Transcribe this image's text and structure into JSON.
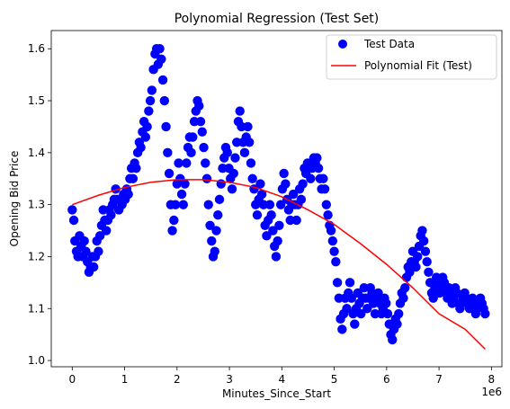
{
  "chart_data": {
    "type": "scatter",
    "title": "Polynomial Regression (Test Set)",
    "xlabel": "Minutes_Since_Start",
    "ylabel": "Opening Bid Price",
    "x_offset_label": "1e6",
    "xlim": [
      -0.4,
      8.2
    ],
    "ylim": [
      0.988,
      1.635
    ],
    "xticks": [
      0,
      1,
      2,
      3,
      4,
      5,
      6,
      7,
      8
    ],
    "yticks": [
      1.0,
      1.1,
      1.2,
      1.3,
      1.4,
      1.5,
      1.6
    ],
    "ytick_labels": [
      "1.0",
      "1.1",
      "1.2",
      "1.3",
      "1.4",
      "1.5",
      "1.6"
    ],
    "grid": false,
    "legend_position": "top-right",
    "series": [
      {
        "name": "Test Data",
        "kind": "scatter",
        "color": "#0000ff",
        "points": [
          [
            0.0,
            1.29
          ],
          [
            0.03,
            1.27
          ],
          [
            0.05,
            1.23
          ],
          [
            0.08,
            1.21
          ],
          [
            0.11,
            1.2
          ],
          [
            0.14,
            1.24
          ],
          [
            0.17,
            1.22
          ],
          [
            0.2,
            1.2
          ],
          [
            0.23,
            1.23
          ],
          [
            0.26,
            1.21
          ],
          [
            0.29,
            1.19
          ],
          [
            0.32,
            1.17
          ],
          [
            0.35,
            1.18
          ],
          [
            0.38,
            1.2
          ],
          [
            0.41,
            1.18
          ],
          [
            0.44,
            1.2
          ],
          [
            0.47,
            1.23
          ],
          [
            0.5,
            1.21
          ],
          [
            0.53,
            1.24
          ],
          [
            0.56,
            1.26
          ],
          [
            0.59,
            1.29
          ],
          [
            0.62,
            1.27
          ],
          [
            0.65,
            1.25
          ],
          [
            0.68,
            1.27
          ],
          [
            0.71,
            1.29
          ],
          [
            0.74,
            1.28
          ],
          [
            0.77,
            1.3
          ],
          [
            0.8,
            1.31
          ],
          [
            0.83,
            1.33
          ],
          [
            0.86,
            1.31
          ],
          [
            0.89,
            1.29
          ],
          [
            0.92,
            1.31
          ],
          [
            0.95,
            1.3
          ],
          [
            0.98,
            1.32
          ],
          [
            1.01,
            1.31
          ],
          [
            1.04,
            1.33
          ],
          [
            1.07,
            1.32
          ],
          [
            1.1,
            1.35
          ],
          [
            1.13,
            1.37
          ],
          [
            1.16,
            1.35
          ],
          [
            1.19,
            1.38
          ],
          [
            1.22,
            1.37
          ],
          [
            1.25,
            1.4
          ],
          [
            1.28,
            1.42
          ],
          [
            1.31,
            1.41
          ],
          [
            1.34,
            1.44
          ],
          [
            1.37,
            1.46
          ],
          [
            1.4,
            1.43
          ],
          [
            1.43,
            1.45
          ],
          [
            1.46,
            1.48
          ],
          [
            1.49,
            1.5
          ],
          [
            1.52,
            1.52
          ],
          [
            1.55,
            1.56
          ],
          [
            1.58,
            1.59
          ],
          [
            1.61,
            1.6
          ],
          [
            1.64,
            1.57
          ],
          [
            1.67,
            1.6
          ],
          [
            1.7,
            1.58
          ],
          [
            1.73,
            1.54
          ],
          [
            1.76,
            1.5
          ],
          [
            1.79,
            1.45
          ],
          [
            1.82,
            1.4
          ],
          [
            1.85,
            1.36
          ],
          [
            1.88,
            1.3
          ],
          [
            1.91,
            1.25
          ],
          [
            1.94,
            1.27
          ],
          [
            1.97,
            1.3
          ],
          [
            2.0,
            1.34
          ],
          [
            2.03,
            1.38
          ],
          [
            2.06,
            1.35
          ],
          [
            2.09,
            1.32
          ],
          [
            2.12,
            1.3
          ],
          [
            2.15,
            1.34
          ],
          [
            2.18,
            1.38
          ],
          [
            2.21,
            1.41
          ],
          [
            2.24,
            1.43
          ],
          [
            2.27,
            1.4
          ],
          [
            2.3,
            1.43
          ],
          [
            2.33,
            1.46
          ],
          [
            2.36,
            1.48
          ],
          [
            2.39,
            1.5
          ],
          [
            2.42,
            1.49
          ],
          [
            2.45,
            1.46
          ],
          [
            2.48,
            1.44
          ],
          [
            2.51,
            1.41
          ],
          [
            2.54,
            1.38
          ],
          [
            2.57,
            1.35
          ],
          [
            2.6,
            1.3
          ],
          [
            2.63,
            1.26
          ],
          [
            2.66,
            1.23
          ],
          [
            2.69,
            1.2
          ],
          [
            2.72,
            1.21
          ],
          [
            2.75,
            1.25
          ],
          [
            2.78,
            1.28
          ],
          [
            2.81,
            1.31
          ],
          [
            2.84,
            1.34
          ],
          [
            2.87,
            1.37
          ],
          [
            2.9,
            1.39
          ],
          [
            2.93,
            1.41
          ],
          [
            2.96,
            1.4
          ],
          [
            2.99,
            1.37
          ],
          [
            3.02,
            1.35
          ],
          [
            3.05,
            1.33
          ],
          [
            3.08,
            1.36
          ],
          [
            3.11,
            1.39
          ],
          [
            3.14,
            1.42
          ],
          [
            3.17,
            1.46
          ],
          [
            3.2,
            1.48
          ],
          [
            3.23,
            1.45
          ],
          [
            3.26,
            1.42
          ],
          [
            3.29,
            1.4
          ],
          [
            3.32,
            1.43
          ],
          [
            3.35,
            1.45
          ],
          [
            3.38,
            1.42
          ],
          [
            3.41,
            1.38
          ],
          [
            3.44,
            1.35
          ],
          [
            3.47,
            1.33
          ],
          [
            3.5,
            1.3
          ],
          [
            3.53,
            1.28
          ],
          [
            3.56,
            1.31
          ],
          [
            3.59,
            1.34
          ],
          [
            3.62,
            1.32
          ],
          [
            3.65,
            1.3
          ],
          [
            3.68,
            1.26
          ],
          [
            3.71,
            1.24
          ],
          [
            3.74,
            1.27
          ],
          [
            3.77,
            1.3
          ],
          [
            3.8,
            1.28
          ],
          [
            3.83,
            1.25
          ],
          [
            3.86,
            1.22
          ],
          [
            3.89,
            1.2
          ],
          [
            3.92,
            1.23
          ],
          [
            3.95,
            1.26
          ],
          [
            3.98,
            1.3
          ],
          [
            4.01,
            1.33
          ],
          [
            4.04,
            1.36
          ],
          [
            4.07,
            1.34
          ],
          [
            4.1,
            1.31
          ],
          [
            4.13,
            1.29
          ],
          [
            4.16,
            1.27
          ],
          [
            4.19,
            1.3
          ],
          [
            4.22,
            1.32
          ],
          [
            4.25,
            1.3
          ],
          [
            4.28,
            1.27
          ],
          [
            4.31,
            1.3
          ],
          [
            4.34,
            1.33
          ],
          [
            4.37,
            1.31
          ],
          [
            4.4,
            1.34
          ],
          [
            4.43,
            1.37
          ],
          [
            4.46,
            1.36
          ],
          [
            4.49,
            1.38
          ],
          [
            4.52,
            1.37
          ],
          [
            4.55,
            1.35
          ],
          [
            4.58,
            1.37
          ],
          [
            4.61,
            1.39
          ],
          [
            4.64,
            1.38
          ],
          [
            4.67,
            1.39
          ],
          [
            4.7,
            1.37
          ],
          [
            4.73,
            1.35
          ],
          [
            4.76,
            1.33
          ],
          [
            4.79,
            1.35
          ],
          [
            4.82,
            1.33
          ],
          [
            4.85,
            1.3
          ],
          [
            4.88,
            1.28
          ],
          [
            4.91,
            1.26
          ],
          [
            4.94,
            1.25
          ],
          [
            4.97,
            1.23
          ],
          [
            5.0,
            1.21
          ],
          [
            5.03,
            1.19
          ],
          [
            5.06,
            1.15
          ],
          [
            5.09,
            1.12
          ],
          [
            5.12,
            1.08
          ],
          [
            5.15,
            1.06
          ],
          [
            5.18,
            1.09
          ],
          [
            5.21,
            1.12
          ],
          [
            5.24,
            1.1
          ],
          [
            5.27,
            1.13
          ],
          [
            5.3,
            1.15
          ],
          [
            5.33,
            1.12
          ],
          [
            5.36,
            1.09
          ],
          [
            5.39,
            1.07
          ],
          [
            5.42,
            1.1
          ],
          [
            5.45,
            1.13
          ],
          [
            5.48,
            1.11
          ],
          [
            5.51,
            1.09
          ],
          [
            5.54,
            1.12
          ],
          [
            5.57,
            1.14
          ],
          [
            5.6,
            1.12
          ],
          [
            5.63,
            1.1
          ],
          [
            5.66,
            1.12
          ],
          [
            5.69,
            1.14
          ],
          [
            5.72,
            1.13
          ],
          [
            5.75,
            1.11
          ],
          [
            5.78,
            1.09
          ],
          [
            5.81,
            1.12
          ],
          [
            5.84,
            1.13
          ],
          [
            5.87,
            1.11
          ],
          [
            5.9,
            1.09
          ],
          [
            5.93,
            1.1
          ],
          [
            5.96,
            1.12
          ],
          [
            5.99,
            1.11
          ],
          [
            6.02,
            1.09
          ],
          [
            6.05,
            1.07
          ],
          [
            6.08,
            1.05
          ],
          [
            6.11,
            1.04
          ],
          [
            6.14,
            1.06
          ],
          [
            6.17,
            1.08
          ],
          [
            6.2,
            1.07
          ],
          [
            6.23,
            1.09
          ],
          [
            6.26,
            1.11
          ],
          [
            6.29,
            1.13
          ],
          [
            6.32,
            1.12
          ],
          [
            6.35,
            1.14
          ],
          [
            6.38,
            1.16
          ],
          [
            6.41,
            1.18
          ],
          [
            6.44,
            1.17
          ],
          [
            6.47,
            1.19
          ],
          [
            6.5,
            1.21
          ],
          [
            6.53,
            1.19
          ],
          [
            6.56,
            1.18
          ],
          [
            6.59,
            1.2
          ],
          [
            6.62,
            1.22
          ],
          [
            6.65,
            1.24
          ],
          [
            6.68,
            1.25
          ],
          [
            6.71,
            1.23
          ],
          [
            6.74,
            1.21
          ],
          [
            6.77,
            1.19
          ],
          [
            6.8,
            1.17
          ],
          [
            6.83,
            1.15
          ],
          [
            6.86,
            1.13
          ],
          [
            6.89,
            1.12
          ],
          [
            6.92,
            1.14
          ],
          [
            6.95,
            1.16
          ],
          [
            6.98,
            1.15
          ],
          [
            7.01,
            1.13
          ],
          [
            7.04,
            1.14
          ],
          [
            7.07,
            1.16
          ],
          [
            7.1,
            1.15
          ],
          [
            7.13,
            1.13
          ],
          [
            7.16,
            1.12
          ],
          [
            7.19,
            1.14
          ],
          [
            7.22,
            1.13
          ],
          [
            7.25,
            1.11
          ],
          [
            7.28,
            1.12
          ],
          [
            7.31,
            1.14
          ],
          [
            7.34,
            1.13
          ],
          [
            7.37,
            1.11
          ],
          [
            7.4,
            1.1
          ],
          [
            7.43,
            1.11
          ],
          [
            7.46,
            1.12
          ],
          [
            7.49,
            1.13
          ],
          [
            7.52,
            1.12
          ],
          [
            7.55,
            1.11
          ],
          [
            7.58,
            1.1
          ],
          [
            7.61,
            1.11
          ],
          [
            7.64,
            1.12
          ],
          [
            7.67,
            1.1
          ],
          [
            7.7,
            1.09
          ],
          [
            7.73,
            1.1
          ],
          [
            7.76,
            1.11
          ],
          [
            7.79,
            1.12
          ],
          [
            7.82,
            1.11
          ],
          [
            7.85,
            1.1
          ],
          [
            7.88,
            1.09
          ]
        ]
      },
      {
        "name": "Polynomial Fit (Test)",
        "kind": "line",
        "color": "#ff0000",
        "points": [
          [
            0.0,
            1.3
          ],
          [
            0.5,
            1.318
          ],
          [
            1.0,
            1.333
          ],
          [
            1.5,
            1.343
          ],
          [
            2.0,
            1.348
          ],
          [
            2.5,
            1.348
          ],
          [
            3.0,
            1.343
          ],
          [
            3.5,
            1.333
          ],
          [
            4.0,
            1.315
          ],
          [
            4.5,
            1.29
          ],
          [
            5.0,
            1.262
          ],
          [
            5.5,
            1.225
          ],
          [
            6.0,
            1.185
          ],
          [
            6.5,
            1.14
          ],
          [
            7.0,
            1.09
          ],
          [
            7.5,
            1.06
          ],
          [
            7.88,
            1.022
          ]
        ]
      }
    ]
  }
}
